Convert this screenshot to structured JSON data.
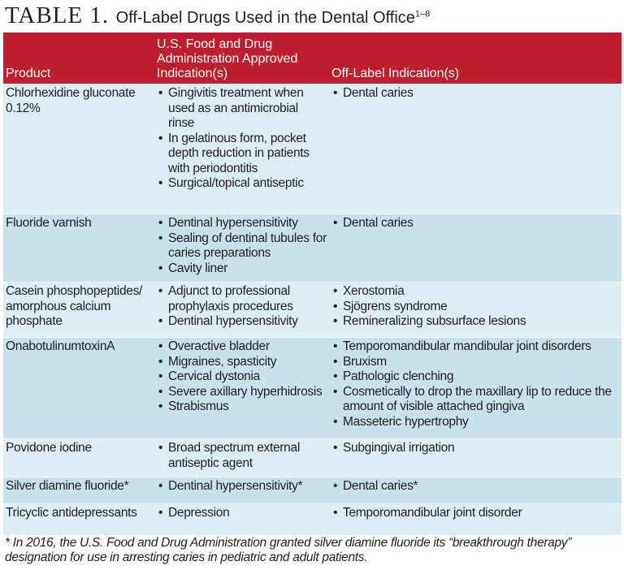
{
  "title": {
    "label": "TABLE 1.",
    "text": "Off-Label Drugs Used in the Dental Office",
    "sup": "1–8"
  },
  "colors": {
    "header": "#be1e2d",
    "row_light": "#dcedf3",
    "row_dark": "#c9e1ea"
  },
  "headers": [
    "Product",
    "U.S. Food and Drug Administration Approved Indication(s)",
    "Off-Label Indication(s)"
  ],
  "rows": [
    {
      "product": "Chlorhexidine gluconate 0.12%",
      "approved": [
        "Gingivitis treatment when used as an antimicrobial rinse",
        "In gelatinous form, pocket depth reduction in patients with periodontitis",
        "Surgical/topical antiseptic"
      ],
      "offlabel": [
        "Dental caries"
      ]
    },
    {
      "product": "Fluoride varnish",
      "approved": [
        "Dentinal hypersensitivity",
        "Sealing of dentinal tubules for caries preparations",
        "Cavity liner"
      ],
      "offlabel": [
        "Dental caries"
      ]
    },
    {
      "product": "Casein phosphopeptides/ amorphous calcium phosphate",
      "approved": [
        "Adjunct to professional prophylaxis procedures",
        "Dentinal hypersensitivity"
      ],
      "offlabel": [
        "Xerostomia",
        "Sjögrens syndrome",
        "Remineralizing subsurface lesions"
      ]
    },
    {
      "product": "OnabotulinumtoxinA",
      "approved": [
        "Overactive bladder",
        "Migraines, spasticity",
        "Cervical dystonia",
        "Severe axillary hyperhidrosis",
        "Strabismus"
      ],
      "offlabel": [
        "Temporomandibular mandibular joint disorders",
        "Bruxism",
        "Pathologic clenching",
        "Cosmetically to drop the maxillary lip to reduce the amount of visible attached gingiva",
        "Masseteric hypertrophy"
      ]
    },
    {
      "product": "Povidone iodine",
      "approved": [
        "Broad spectrum external antiseptic agent"
      ],
      "offlabel": [
        "Subgingival irrigation"
      ]
    },
    {
      "product": "Silver diamine fluoride*",
      "approved": [
        "Dentinal hypersensitivity*"
      ],
      "offlabel": [
        "Dental caries*"
      ]
    },
    {
      "product": "Tricyclic antidepressants",
      "approved": [
        "Depression"
      ],
      "offlabel": [
        "Temporomandibular joint disorder"
      ]
    }
  ],
  "footnote": "* In 2016, the U.S. Food and Drug Administration granted silver diamine fluoride its “breakthrough therapy” designation for use in arresting caries in pediatric and adult patients."
}
